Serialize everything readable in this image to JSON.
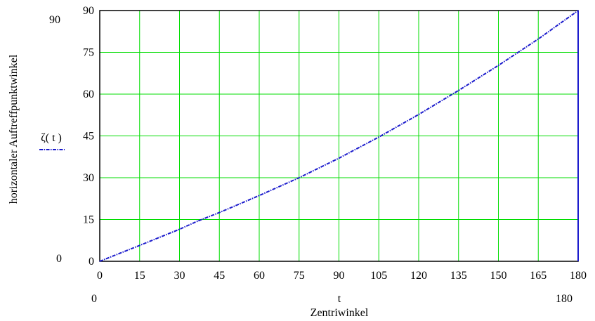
{
  "chart_data": {
    "type": "line",
    "x_range": [
      0,
      180
    ],
    "y_range": [
      0,
      90
    ],
    "x_ticks": [
      0,
      15,
      30,
      45,
      60,
      75,
      90,
      105,
      120,
      135,
      150,
      165,
      180
    ],
    "y_ticks": [
      0,
      15,
      30,
      45,
      60,
      75,
      90
    ],
    "x_range_labels": [
      "0",
      "180"
    ],
    "y_range_labels": [
      "0",
      "90"
    ],
    "xlabel_top": "t",
    "xlabel": "Zentriwinkel",
    "ylabel": "horizontaler Auftreffpunktwinkel",
    "grid": true,
    "grid_color": "#00dd00",
    "legend_position": "left",
    "series": [
      {
        "name": "ζ( t )",
        "color": "#1a1acc",
        "line_style": "dash-dot",
        "x": [
          0,
          15,
          30,
          37,
          45,
          60,
          75,
          90,
          105,
          120,
          135,
          150,
          165,
          180
        ],
        "y": [
          0,
          5.7,
          11.5,
          14.5,
          17.5,
          23.6,
          30,
          37,
          44.6,
          52.7,
          61.3,
          70.3,
          79.8,
          90
        ]
      }
    ]
  }
}
